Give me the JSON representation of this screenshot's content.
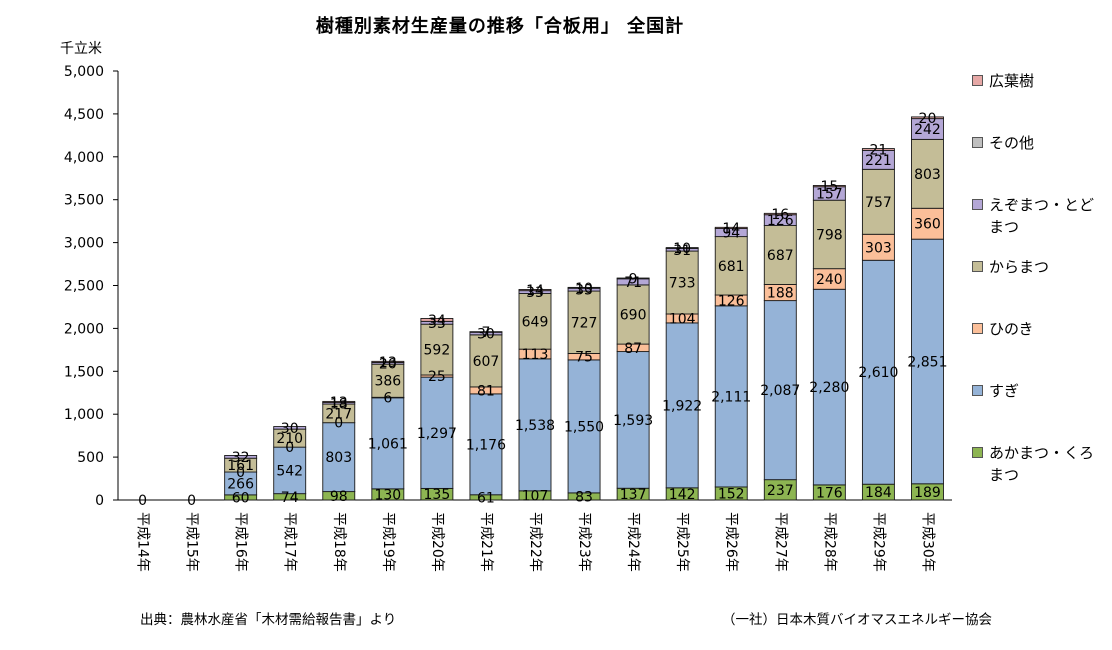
{
  "page": {
    "title": "樹種別素材生産量の推移「合板用」 全国計",
    "unit_label": "千立米",
    "source": "出典：農林水産省「木材需給報告書」より",
    "credit": "（一社）日本木質バイオマスエネルギー協会"
  },
  "chart_data": {
    "type": "bar",
    "stacked": true,
    "title": "樹種別素材生産量の推移「合板用」 全国計",
    "ylabel": "千立米",
    "xlabel": "",
    "ylim": [
      0,
      5000
    ],
    "yticks": [
      "0",
      "500",
      "1,000",
      "1,500",
      "2,000",
      "2,500",
      "3,000",
      "3,500",
      "4,000",
      "4,500",
      "5,000"
    ],
    "grid": false,
    "legend_position": "right",
    "categories": [
      "平成14年",
      "平成15年",
      "平成16年",
      "平成17年",
      "平成18年",
      "平成19年",
      "平成20年",
      "平成21年",
      "平成22年",
      "平成23年",
      "平成24年",
      "平成25年",
      "平成26年",
      "平成27年",
      "平成28年",
      "平成29年",
      "平成30年"
    ],
    "series": [
      {
        "name": "あかまつ・くろまつ",
        "color": "#8DB552",
        "values": [
          0,
          0,
          60,
          74,
          98,
          130,
          135,
          61,
          107,
          83,
          137,
          142,
          152,
          237,
          176,
          184,
          189
        ]
      },
      {
        "name": "すぎ",
        "color": "#95B3D7",
        "values": [
          0,
          0,
          266,
          542,
          803,
          1061,
          1297,
          1176,
          1538,
          1550,
          1593,
          1922,
          2111,
          2087,
          2280,
          2610,
          2851
        ]
      },
      {
        "name": "ひのき",
        "color": "#FBBF99",
        "values": [
          0,
          0,
          0,
          0,
          0,
          6,
          25,
          81,
          113,
          75,
          87,
          104,
          126,
          188,
          240,
          303,
          360
        ]
      },
      {
        "name": "からまつ",
        "color": "#C4BD97",
        "values": [
          0,
          0,
          161,
          210,
          217,
          386,
          592,
          607,
          649,
          727,
          690,
          733,
          681,
          687,
          798,
          757,
          803
        ]
      },
      {
        "name": "えぞまつ・とどまつ",
        "color": "#B4A7D6",
        "values": [
          0,
          0,
          32,
          30,
          18,
          20,
          33,
          30,
          33,
          33,
          71,
          31,
          94,
          126,
          157,
          221,
          242
        ]
      },
      {
        "name": "その他",
        "color": "#BFBFBF",
        "values": [
          0,
          0,
          0,
          0,
          0,
          0,
          0,
          0,
          0,
          0,
          0,
          0,
          0,
          0,
          0,
          0,
          0
        ]
      },
      {
        "name": "広葉樹",
        "color": "#E6A8A6",
        "values": [
          0,
          0,
          0,
          0,
          13,
          13,
          34,
          7,
          14,
          10,
          9,
          10,
          14,
          16,
          15,
          21,
          20
        ]
      }
    ],
    "legend_order": [
      6,
      5,
      4,
      3,
      2,
      1,
      0
    ]
  }
}
